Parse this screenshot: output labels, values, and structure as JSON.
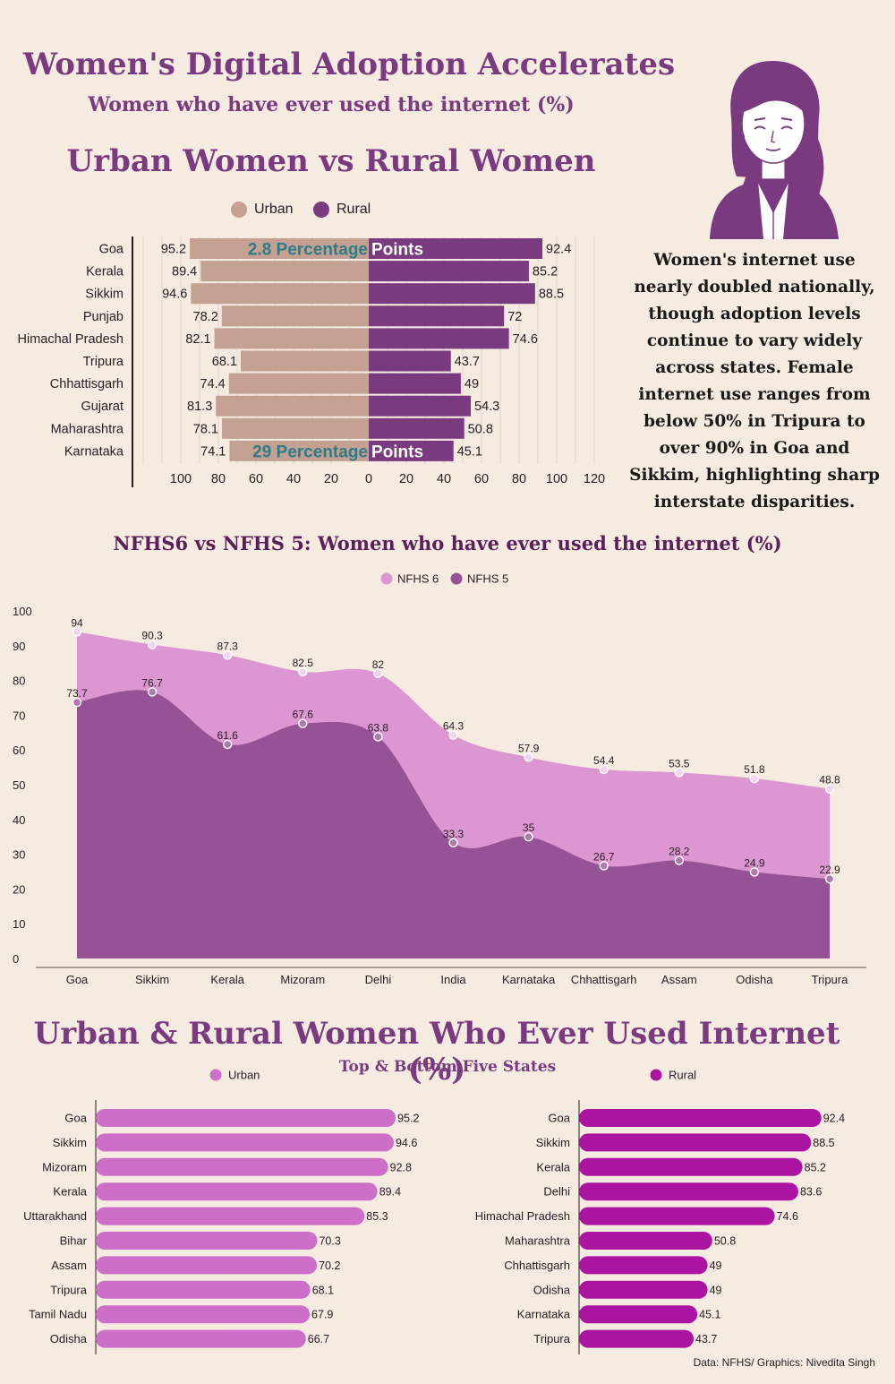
{
  "header": {
    "title": "Women's Digital Adoption Accelerates",
    "subtitle": "Women who have ever used the internet (%)"
  },
  "section1": {
    "title": "Urban Women  vs Rural Women",
    "legend_urban": "Urban",
    "legend_rural": "Rural",
    "annotation_top_left": "2.8 Percentage",
    "annotation_top_right": "Points",
    "annotation_bottom_left": "29 Percentage",
    "annotation_bottom_right": "Points"
  },
  "note": "Women's internet use nearly doubled nationally, though adoption levels continue to vary widely across states. Female internet use ranges from below 50% in Tripura to over 90% in Goa and Sikkim, highlighting sharp interstate disparities.",
  "section2": {
    "title": "NFHS6 vs NFHS 5: Women who have ever used the internet (%)"
  },
  "section3": {
    "title": "Urban & Rural Women Who Ever Used Internet (%)",
    "subtitle": "Top & Bottom Five States"
  },
  "source": "Data: NFHS/ Graphics: Nivedita Singh",
  "colors": {
    "urban": "#c4a192",
    "rural": "#7a3a80",
    "nfhs6": "#dc97d2",
    "nfhs5": "#955294",
    "urban_bar": "#cd6fc9",
    "rural_bar": "#aa14a0",
    "title": "#7a3a80"
  },
  "chart_data": [
    {
      "type": "bar",
      "orientation": "butterfly",
      "categories": [
        "Goa",
        "Kerala",
        "Sikkim",
        "Punjab",
        "Himachal Pradesh",
        "Tripura",
        "Chhattisgarh",
        "Gujarat",
        "Maharashtra",
        "Karnataka"
      ],
      "series": [
        {
          "name": "Urban",
          "values": [
            95.2,
            89.4,
            94.6,
            78.2,
            82.1,
            68.1,
            74.4,
            81.3,
            78.1,
            74.1
          ]
        },
        {
          "name": "Rural",
          "values": [
            92.4,
            85.2,
            88.5,
            72,
            74.6,
            43.7,
            49,
            54.3,
            50.8,
            45.1
          ]
        }
      ],
      "xticks_left": [
        "100",
        "80",
        "60",
        "40",
        "20",
        "0"
      ],
      "xticks_right": [
        "20",
        "40",
        "60",
        "80",
        "100",
        "120"
      ],
      "xlim": [
        -120,
        120
      ],
      "legend": "top"
    },
    {
      "type": "area",
      "categories": [
        "Goa",
        "Sikkim",
        "Kerala",
        "Mizoram",
        "Delhi",
        "India",
        "Karnataka",
        "Chhattisgarh",
        "Assam",
        "Odisha",
        "Tripura"
      ],
      "series": [
        {
          "name": "NFHS 6",
          "values": [
            94,
            90.3,
            87.3,
            82.5,
            82,
            64.3,
            57.9,
            54.4,
            53.5,
            51.8,
            48.8
          ]
        },
        {
          "name": "NFHS 5",
          "values": [
            73.7,
            76.7,
            61.6,
            67.6,
            63.8,
            33.3,
            35,
            26.7,
            28.2,
            24.9,
            22.9
          ]
        }
      ],
      "yticks": [
        "0",
        "10",
        "20",
        "30",
        "40",
        "50",
        "60",
        "70",
        "80",
        "90",
        "100"
      ],
      "ylim": [
        0,
        100
      ],
      "grid": false,
      "legend": "top"
    },
    {
      "type": "bar",
      "orientation": "horizontal",
      "categories": [
        "Goa",
        "Sikkim",
        "Mizoram",
        "Kerala",
        "Uttarakhand",
        "Bihar",
        "Assam",
        "Tripura",
        "Tamil Nadu",
        "Odisha"
      ],
      "series": [
        {
          "name": "Urban",
          "values": [
            95.2,
            94.6,
            92.8,
            89.4,
            85.3,
            70.3,
            70.2,
            68.1,
            67.9,
            66.7
          ]
        }
      ]
    },
    {
      "type": "bar",
      "orientation": "horizontal",
      "categories": [
        "Goa",
        "Sikkim",
        "Kerala",
        "Delhi",
        "Himachal Pradesh",
        "Maharashtra",
        "Chhattisgarh",
        "Odisha",
        "Karnataka",
        "Tripura"
      ],
      "series": [
        {
          "name": "Rural",
          "values": [
            92.4,
            88.5,
            85.2,
            83.6,
            74.6,
            50.8,
            49,
            49,
            45.1,
            43.7
          ]
        }
      ]
    }
  ]
}
